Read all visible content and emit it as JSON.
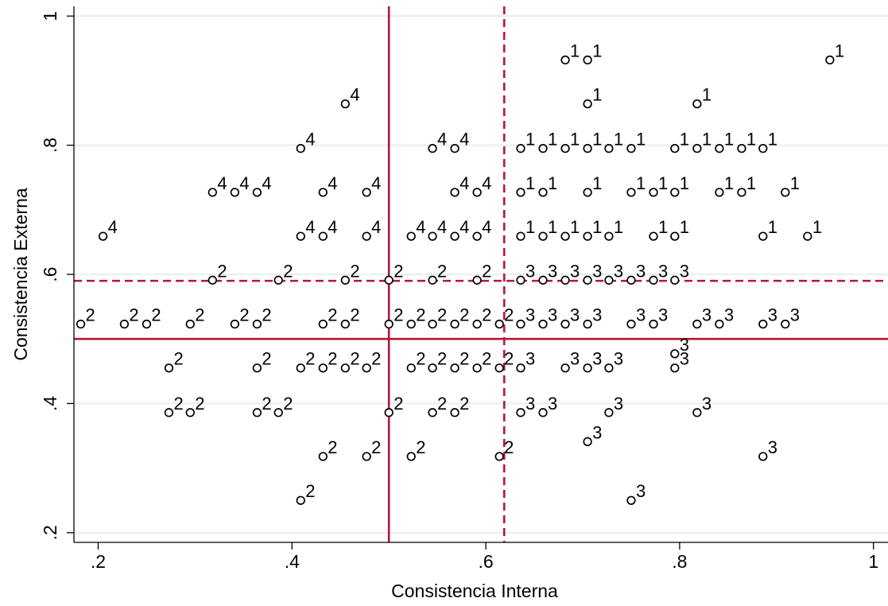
{
  "chart_data": {
    "type": "scatter",
    "title": "",
    "xlabel": "Consistencia Interna",
    "ylabel": "Consistencia Externa",
    "xlim": [
      0.175,
      1.015
    ],
    "ylim": [
      0.185,
      1.015
    ],
    "xticks": [
      {
        "v": 0.2,
        "label": ".2"
      },
      {
        "v": 0.4,
        "label": ".4"
      },
      {
        "v": 0.6,
        "label": ".6"
      },
      {
        "v": 0.8,
        "label": ".8"
      },
      {
        "v": 1.0,
        "label": "1"
      }
    ],
    "yticks": [
      {
        "v": 0.2,
        "label": ".2"
      },
      {
        "v": 0.4,
        "label": ".4"
      },
      {
        "v": 0.6,
        "label": ".6"
      },
      {
        "v": 0.8,
        "label": ".8"
      },
      {
        "v": 1.0,
        "label": "1"
      }
    ],
    "grid": true,
    "marker": "hollow-circle",
    "reference_lines": [
      {
        "axis": "x",
        "value": 0.5,
        "style": "solid",
        "color": "#b5163a"
      },
      {
        "axis": "x",
        "value": 0.619,
        "style": "dashed",
        "color": "#b5163a"
      },
      {
        "axis": "y",
        "value": 0.5,
        "style": "solid",
        "color": "#b5163a"
      },
      {
        "axis": "y",
        "value": 0.59,
        "style": "dashed",
        "color": "#b5163a"
      }
    ],
    "points": [
      {
        "x": 0.682,
        "y": 0.932,
        "label": "1"
      },
      {
        "x": 0.705,
        "y": 0.932,
        "label": "1"
      },
      {
        "x": 0.955,
        "y": 0.932,
        "label": "1"
      },
      {
        "x": 0.705,
        "y": 0.864,
        "label": "1"
      },
      {
        "x": 0.818,
        "y": 0.864,
        "label": "1"
      },
      {
        "x": 0.636,
        "y": 0.795,
        "label": "1"
      },
      {
        "x": 0.659,
        "y": 0.795,
        "label": "1"
      },
      {
        "x": 0.682,
        "y": 0.795,
        "label": "1"
      },
      {
        "x": 0.705,
        "y": 0.795,
        "label": "1"
      },
      {
        "x": 0.727,
        "y": 0.795,
        "label": "1"
      },
      {
        "x": 0.75,
        "y": 0.795,
        "label": "1"
      },
      {
        "x": 0.795,
        "y": 0.795,
        "label": "1"
      },
      {
        "x": 0.818,
        "y": 0.795,
        "label": "1"
      },
      {
        "x": 0.841,
        "y": 0.795,
        "label": "1"
      },
      {
        "x": 0.864,
        "y": 0.795,
        "label": "1"
      },
      {
        "x": 0.886,
        "y": 0.795,
        "label": "1"
      },
      {
        "x": 0.636,
        "y": 0.727,
        "label": "1"
      },
      {
        "x": 0.659,
        "y": 0.727,
        "label": "1"
      },
      {
        "x": 0.705,
        "y": 0.727,
        "label": "1"
      },
      {
        "x": 0.75,
        "y": 0.727,
        "label": "1"
      },
      {
        "x": 0.773,
        "y": 0.727,
        "label": "1"
      },
      {
        "x": 0.795,
        "y": 0.727,
        "label": "1"
      },
      {
        "x": 0.841,
        "y": 0.727,
        "label": "1"
      },
      {
        "x": 0.864,
        "y": 0.727,
        "label": "1"
      },
      {
        "x": 0.909,
        "y": 0.727,
        "label": "1"
      },
      {
        "x": 0.636,
        "y": 0.659,
        "label": "1"
      },
      {
        "x": 0.659,
        "y": 0.659,
        "label": "1"
      },
      {
        "x": 0.682,
        "y": 0.659,
        "label": "1"
      },
      {
        "x": 0.705,
        "y": 0.659,
        "label": "1"
      },
      {
        "x": 0.727,
        "y": 0.659,
        "label": "1"
      },
      {
        "x": 0.773,
        "y": 0.659,
        "label": "1"
      },
      {
        "x": 0.795,
        "y": 0.659,
        "label": "1"
      },
      {
        "x": 0.886,
        "y": 0.659,
        "label": "1"
      },
      {
        "x": 0.932,
        "y": 0.659,
        "label": "1"
      },
      {
        "x": 0.455,
        "y": 0.864,
        "label": "4"
      },
      {
        "x": 0.409,
        "y": 0.795,
        "label": "4"
      },
      {
        "x": 0.545,
        "y": 0.795,
        "label": "4"
      },
      {
        "x": 0.568,
        "y": 0.795,
        "label": "4"
      },
      {
        "x": 0.318,
        "y": 0.727,
        "label": "4"
      },
      {
        "x": 0.341,
        "y": 0.727,
        "label": "4"
      },
      {
        "x": 0.364,
        "y": 0.727,
        "label": "4"
      },
      {
        "x": 0.432,
        "y": 0.727,
        "label": "4"
      },
      {
        "x": 0.477,
        "y": 0.727,
        "label": "4"
      },
      {
        "x": 0.568,
        "y": 0.727,
        "label": "4"
      },
      {
        "x": 0.591,
        "y": 0.727,
        "label": "4"
      },
      {
        "x": 0.205,
        "y": 0.659,
        "label": "4"
      },
      {
        "x": 0.409,
        "y": 0.659,
        "label": "4"
      },
      {
        "x": 0.432,
        "y": 0.659,
        "label": "4"
      },
      {
        "x": 0.477,
        "y": 0.659,
        "label": "4"
      },
      {
        "x": 0.523,
        "y": 0.659,
        "label": "4"
      },
      {
        "x": 0.545,
        "y": 0.659,
        "label": "4"
      },
      {
        "x": 0.568,
        "y": 0.659,
        "label": "4"
      },
      {
        "x": 0.591,
        "y": 0.659,
        "label": "4"
      },
      {
        "x": 0.318,
        "y": 0.591,
        "label": "2"
      },
      {
        "x": 0.386,
        "y": 0.591,
        "label": "2"
      },
      {
        "x": 0.455,
        "y": 0.591,
        "label": "2"
      },
      {
        "x": 0.5,
        "y": 0.591,
        "label": "2"
      },
      {
        "x": 0.545,
        "y": 0.591,
        "label": "2"
      },
      {
        "x": 0.591,
        "y": 0.591,
        "label": "2"
      },
      {
        "x": 0.182,
        "y": 0.523,
        "label": "2"
      },
      {
        "x": 0.227,
        "y": 0.523,
        "label": "2"
      },
      {
        "x": 0.25,
        "y": 0.523,
        "label": "2"
      },
      {
        "x": 0.295,
        "y": 0.523,
        "label": "2"
      },
      {
        "x": 0.341,
        "y": 0.523,
        "label": "2"
      },
      {
        "x": 0.364,
        "y": 0.523,
        "label": "2"
      },
      {
        "x": 0.432,
        "y": 0.523,
        "label": "2"
      },
      {
        "x": 0.455,
        "y": 0.523,
        "label": "2"
      },
      {
        "x": 0.5,
        "y": 0.523,
        "label": "2"
      },
      {
        "x": 0.523,
        "y": 0.523,
        "label": "2"
      },
      {
        "x": 0.545,
        "y": 0.523,
        "label": "2"
      },
      {
        "x": 0.568,
        "y": 0.523,
        "label": "2"
      },
      {
        "x": 0.591,
        "y": 0.523,
        "label": "2"
      },
      {
        "x": 0.614,
        "y": 0.523,
        "label": "2"
      },
      {
        "x": 0.273,
        "y": 0.455,
        "label": "2"
      },
      {
        "x": 0.364,
        "y": 0.455,
        "label": "2"
      },
      {
        "x": 0.409,
        "y": 0.455,
        "label": "2"
      },
      {
        "x": 0.432,
        "y": 0.455,
        "label": "2"
      },
      {
        "x": 0.455,
        "y": 0.455,
        "label": "2"
      },
      {
        "x": 0.477,
        "y": 0.455,
        "label": "2"
      },
      {
        "x": 0.523,
        "y": 0.455,
        "label": "2"
      },
      {
        "x": 0.545,
        "y": 0.455,
        "label": "2"
      },
      {
        "x": 0.568,
        "y": 0.455,
        "label": "2"
      },
      {
        "x": 0.591,
        "y": 0.455,
        "label": "2"
      },
      {
        "x": 0.614,
        "y": 0.455,
        "label": "2"
      },
      {
        "x": 0.273,
        "y": 0.386,
        "label": "2"
      },
      {
        "x": 0.295,
        "y": 0.386,
        "label": "2"
      },
      {
        "x": 0.364,
        "y": 0.386,
        "label": "2"
      },
      {
        "x": 0.386,
        "y": 0.386,
        "label": "2"
      },
      {
        "x": 0.5,
        "y": 0.386,
        "label": "2"
      },
      {
        "x": 0.545,
        "y": 0.386,
        "label": "2"
      },
      {
        "x": 0.568,
        "y": 0.386,
        "label": "2"
      },
      {
        "x": 0.432,
        "y": 0.318,
        "label": "2"
      },
      {
        "x": 0.477,
        "y": 0.318,
        "label": "2"
      },
      {
        "x": 0.523,
        "y": 0.318,
        "label": "2"
      },
      {
        "x": 0.614,
        "y": 0.318,
        "label": "2"
      },
      {
        "x": 0.409,
        "y": 0.25,
        "label": "2"
      },
      {
        "x": 0.636,
        "y": 0.591,
        "label": "3"
      },
      {
        "x": 0.659,
        "y": 0.591,
        "label": "3"
      },
      {
        "x": 0.682,
        "y": 0.591,
        "label": "3"
      },
      {
        "x": 0.705,
        "y": 0.591,
        "label": "3"
      },
      {
        "x": 0.727,
        "y": 0.591,
        "label": "3"
      },
      {
        "x": 0.75,
        "y": 0.591,
        "label": "3"
      },
      {
        "x": 0.773,
        "y": 0.591,
        "label": "3"
      },
      {
        "x": 0.795,
        "y": 0.591,
        "label": "3"
      },
      {
        "x": 0.636,
        "y": 0.523,
        "label": "3"
      },
      {
        "x": 0.659,
        "y": 0.523,
        "label": "3"
      },
      {
        "x": 0.682,
        "y": 0.523,
        "label": "3"
      },
      {
        "x": 0.705,
        "y": 0.523,
        "label": "3"
      },
      {
        "x": 0.75,
        "y": 0.523,
        "label": "3"
      },
      {
        "x": 0.773,
        "y": 0.523,
        "label": "3"
      },
      {
        "x": 0.818,
        "y": 0.523,
        "label": "3"
      },
      {
        "x": 0.841,
        "y": 0.523,
        "label": "3"
      },
      {
        "x": 0.886,
        "y": 0.523,
        "label": "3"
      },
      {
        "x": 0.909,
        "y": 0.523,
        "label": "3"
      },
      {
        "x": 0.795,
        "y": 0.477,
        "label": "3"
      },
      {
        "x": 0.636,
        "y": 0.455,
        "label": "3"
      },
      {
        "x": 0.682,
        "y": 0.455,
        "label": "3"
      },
      {
        "x": 0.705,
        "y": 0.455,
        "label": "3"
      },
      {
        "x": 0.727,
        "y": 0.455,
        "label": "3"
      },
      {
        "x": 0.795,
        "y": 0.455,
        "label": "3"
      },
      {
        "x": 0.636,
        "y": 0.386,
        "label": "3"
      },
      {
        "x": 0.659,
        "y": 0.386,
        "label": "3"
      },
      {
        "x": 0.727,
        "y": 0.386,
        "label": "3"
      },
      {
        "x": 0.818,
        "y": 0.386,
        "label": "3"
      },
      {
        "x": 0.705,
        "y": 0.341,
        "label": "3"
      },
      {
        "x": 0.886,
        "y": 0.318,
        "label": "3"
      },
      {
        "x": 0.75,
        "y": 0.25,
        "label": "3"
      }
    ]
  }
}
